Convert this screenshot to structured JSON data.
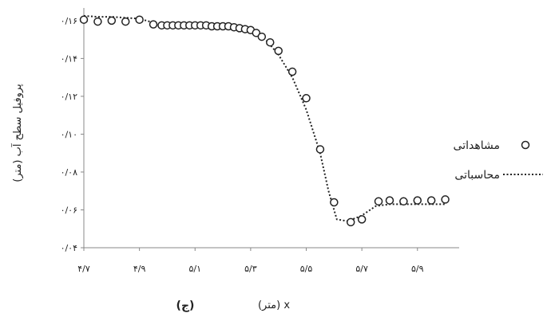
{
  "chart_data": {
    "type": "scatter",
    "title": "",
    "xlabel": "(متر) x",
    "ylabel": "پروفیل سطح آب (متر)",
    "panel_label": "(ج)",
    "xlim": [
      4.7,
      6.05
    ],
    "ylim": [
      0.04,
      0.165
    ],
    "x_ticks": [
      4.7,
      4.9,
      5.1,
      5.3,
      5.5,
      5.7,
      5.9
    ],
    "x_tick_labels": [
      "۴/۷",
      "۴/۹",
      "۵/۱",
      "۵/۳",
      "۵/۵",
      "۵/۷",
      "۵/۹"
    ],
    "y_ticks": [
      0.04,
      0.06,
      0.08,
      0.1,
      0.12,
      0.14,
      0.16
    ],
    "y_tick_labels": [
      "۰/۰۴",
      "۰/۰۶",
      "۰/۰۸",
      "۰/۱۰",
      "۰/۱۲",
      "۰/۱۴",
      "۰/۱۶"
    ],
    "grid": false,
    "legend_position": "right",
    "series": [
      {
        "name": "مشاهداتی",
        "style": "markers",
        "x": [
          4.7,
          4.75,
          4.8,
          4.85,
          4.9,
          4.95,
          4.98,
          5.0,
          5.02,
          5.04,
          5.06,
          5.08,
          5.1,
          5.12,
          5.14,
          5.16,
          5.18,
          5.2,
          5.22,
          5.24,
          5.26,
          5.28,
          5.3,
          5.32,
          5.34,
          5.37,
          5.4,
          5.45,
          5.5,
          5.55,
          5.6,
          5.66,
          5.7,
          5.76,
          5.8,
          5.85,
          5.9,
          5.95,
          6.0
        ],
        "y": [
          0.1605,
          0.1595,
          0.16,
          0.1595,
          0.1605,
          0.158,
          0.1575,
          0.1575,
          0.1575,
          0.1575,
          0.1575,
          0.1575,
          0.1575,
          0.1575,
          0.1575,
          0.157,
          0.157,
          0.157,
          0.157,
          0.1565,
          0.156,
          0.1555,
          0.155,
          0.1535,
          0.1515,
          0.1485,
          0.144,
          0.133,
          0.119,
          0.092,
          0.064,
          0.0535,
          0.055,
          0.0645,
          0.065,
          0.0645,
          0.065,
          0.065,
          0.0655
        ]
      },
      {
        "name": "محاسباتی",
        "style": "dotted",
        "x": [
          4.7,
          4.75,
          4.8,
          4.9,
          4.95,
          5.0,
          5.1,
          5.2,
          5.26,
          5.3,
          5.33,
          5.36,
          5.4,
          5.45,
          5.5,
          5.55,
          5.58,
          5.61,
          5.65,
          5.7,
          5.75,
          5.8,
          5.9,
          6.0
        ],
        "y": [
          0.1625,
          0.162,
          0.162,
          0.161,
          0.159,
          0.158,
          0.1575,
          0.157,
          0.1565,
          0.155,
          0.153,
          0.149,
          0.142,
          0.13,
          0.113,
          0.09,
          0.07,
          0.055,
          0.054,
          0.057,
          0.062,
          0.063,
          0.063,
          0.063
        ]
      }
    ],
    "colors": {
      "axis": "#888888",
      "marks": "#222222",
      "text": "#222222"
    }
  }
}
